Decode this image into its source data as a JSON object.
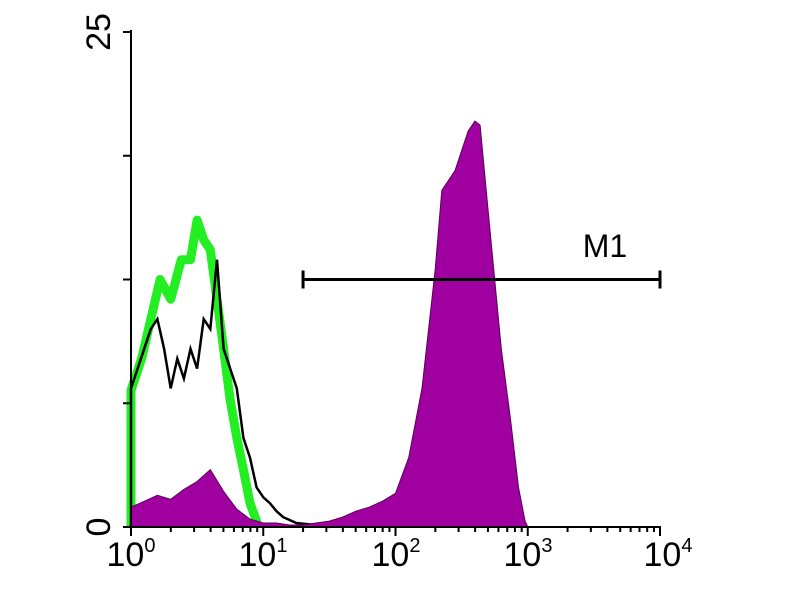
{
  "chart_data": {
    "type": "area",
    "title": "",
    "xlabel": "",
    "ylabel": "",
    "x_scale": "log10",
    "xlim": [
      1,
      10000
    ],
    "ylim": [
      0,
      25
    ],
    "grid": false,
    "x_tick_labels": [
      {
        "base": "10",
        "exp": "0"
      },
      {
        "base": "10",
        "exp": "1"
      },
      {
        "base": "10",
        "exp": "2"
      },
      {
        "base": "10",
        "exp": "3"
      },
      {
        "base": "10",
        "exp": "4"
      }
    ],
    "y_ticks": [
      0,
      6.25,
      12.5,
      18.75,
      25
    ],
    "y_tick_labels": [
      "0",
      "25"
    ],
    "marker": {
      "label": "M1",
      "from": 20,
      "to": 10000,
      "y": 12.5
    },
    "series": [
      {
        "style": "thick-outline",
        "color": "#22ee22",
        "log_x": [
          0.0,
          0.08,
          0.15,
          0.22,
          0.3,
          0.38,
          0.45,
          0.5,
          0.55,
          0.6,
          0.65,
          0.7,
          0.75,
          0.8,
          0.85,
          0.9,
          0.95
        ],
        "y": [
          6.9,
          8.5,
          10.5,
          12.5,
          11.5,
          13.5,
          13.5,
          15.5,
          14.5,
          14.0,
          11.5,
          9.0,
          6.4,
          4.5,
          2.9,
          1.2,
          0.3
        ]
      },
      {
        "style": "outline",
        "color": "#000000",
        "log_x": [
          0.0,
          0.05,
          0.1,
          0.15,
          0.2,
          0.25,
          0.3,
          0.35,
          0.4,
          0.45,
          0.5,
          0.55,
          0.6,
          0.65,
          0.7,
          0.75,
          0.8,
          0.85,
          0.9,
          0.95,
          1.0,
          1.05,
          1.1,
          1.15,
          1.25,
          1.4,
          1.5
        ],
        "y": [
          7.0,
          8.0,
          9.0,
          10.0,
          10.5,
          9.0,
          7.0,
          8.5,
          7.5,
          9.0,
          8.0,
          10.5,
          10.0,
          13.5,
          9.0,
          8.0,
          7.0,
          4.5,
          3.5,
          2.0,
          1.5,
          1.2,
          0.8,
          0.5,
          0.2,
          0.1,
          0.0
        ]
      },
      {
        "style": "filled",
        "color": "#a000a0",
        "log_x": [
          0.0,
          0.1,
          0.2,
          0.3,
          0.4,
          0.5,
          0.6,
          0.7,
          0.8,
          0.9,
          1.0,
          1.1,
          1.2,
          1.3,
          1.4,
          1.5,
          1.6,
          1.7,
          1.8,
          1.9,
          2.0,
          2.1,
          2.2,
          2.3,
          2.35,
          2.4,
          2.45,
          2.5,
          2.55,
          2.6,
          2.64,
          2.7,
          2.75,
          2.8,
          2.87,
          2.93,
          2.98,
          3.0
        ],
        "y": [
          1.0,
          1.3,
          1.6,
          1.4,
          1.9,
          2.3,
          2.9,
          1.8,
          0.9,
          0.4,
          0.2,
          0.2,
          0.1,
          0.1,
          0.2,
          0.3,
          0.5,
          0.8,
          1.0,
          1.3,
          1.7,
          3.5,
          7.0,
          13.0,
          17.0,
          17.5,
          18.0,
          19.0,
          20.0,
          20.5,
          20.3,
          16.0,
          12.5,
          9.0,
          5.4,
          2.0,
          0.3,
          0.0
        ]
      }
    ]
  }
}
